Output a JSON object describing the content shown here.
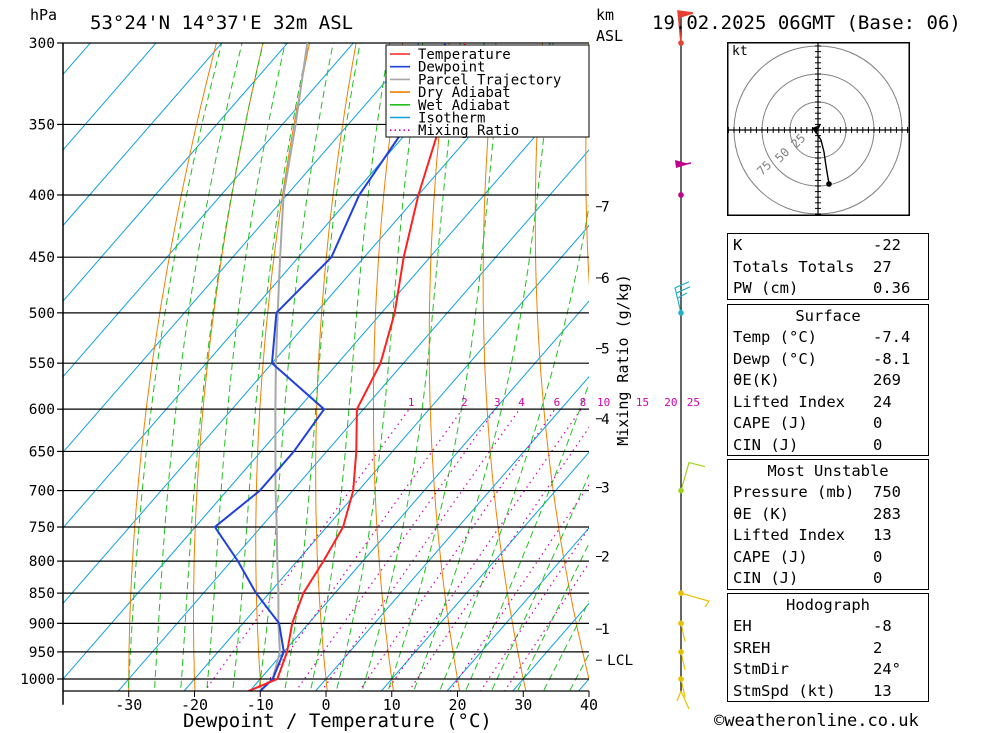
{
  "header": {
    "location": "53°24'N 14°37'E 32m ASL",
    "datetime": "19.02.2025 06GMT (Base: 06)",
    "pressure_unit": "hPa",
    "height_unit": "km",
    "height_unit2": "ASL",
    "footer_credit": "©weatheronline.co.uk"
  },
  "legend": [
    {
      "label": "Temperature",
      "color": "#ff2020",
      "style": "solid"
    },
    {
      "label": "Dewpoint",
      "color": "#1f3fdf",
      "style": "solid"
    },
    {
      "label": "Parcel Trajectory",
      "color": "#a8a8a8",
      "style": "solid"
    },
    {
      "label": "Dry Adiabat",
      "color": "#f08000",
      "style": "solid"
    },
    {
      "label": "Wet Adiabat",
      "color": "#20c020",
      "style": "solid"
    },
    {
      "label": "Isotherm",
      "color": "#10a0e0",
      "style": "solid"
    },
    {
      "label": "Mixing Ratio",
      "color": "#d000b0",
      "style": "dotted"
    }
  ],
  "hodograph": {
    "unit_label": "kt",
    "ring_labels": [
      "25",
      "50",
      "75"
    ]
  },
  "indices": {
    "k": {
      "label": "K",
      "value": "-22"
    },
    "totals": {
      "label": "Totals Totals",
      "value": "27"
    },
    "pw": {
      "label": "PW (cm)",
      "value": "0.36"
    }
  },
  "surface": {
    "title": "Surface",
    "rows": [
      {
        "label": "Temp (°C)",
        "value": "-7.4"
      },
      {
        "label": "Dewp (°C)",
        "value": "-8.1"
      },
      {
        "label": "θE(K)",
        "value": "269"
      },
      {
        "label": "Lifted Index",
        "value": "24"
      },
      {
        "label": "CAPE (J)",
        "value": "0"
      },
      {
        "label": "CIN (J)",
        "value": "0"
      }
    ]
  },
  "most_unstable": {
    "title": "Most Unstable",
    "rows": [
      {
        "label": "Pressure (mb)",
        "value": "750"
      },
      {
        "label": "θE (K)",
        "value": "283"
      },
      {
        "label": "Lifted Index",
        "value": "13"
      },
      {
        "label": "CAPE (J)",
        "value": "0"
      },
      {
        "label": "CIN (J)",
        "value": "0"
      }
    ]
  },
  "hodo_table": {
    "title": "Hodograph",
    "rows": [
      {
        "label": "EH",
        "value": "-8"
      },
      {
        "label": "SREH",
        "value": "2"
      },
      {
        "label": "StmDir",
        "value": "24°"
      },
      {
        "label": "StmSpd (kt)",
        "value": "13"
      }
    ]
  },
  "chart_data": {
    "type": "line",
    "title": "53°24'N 14°37'E 32m ASL",
    "xlabel": "Dewpoint / Temperature (°C)",
    "ylabel": "hPa",
    "y2label": "Mixing Ratio (g/kg)",
    "x_ticks": [
      -30,
      -20,
      -10,
      0,
      10,
      20,
      30,
      40
    ],
    "x_range": [
      -40,
      40
    ],
    "p_levels": [
      300,
      350,
      400,
      450,
      500,
      550,
      600,
      650,
      700,
      750,
      800,
      850,
      900,
      950,
      1000
    ],
    "p_range": [
      300,
      1050
    ],
    "y_scale": "log",
    "km_ticks": [
      {
        "p": 965,
        "label": "LCL"
      },
      {
        "p": 910,
        "label": "1"
      },
      {
        "p": 793,
        "label": "2"
      },
      {
        "p": 696,
        "label": "3"
      },
      {
        "p": 611,
        "label": "4"
      },
      {
        "p": 535,
        "label": "5"
      },
      {
        "p": 468,
        "label": "6"
      },
      {
        "p": 409,
        "label": "7"
      }
    ],
    "mixing_ratio_labels": [
      "1",
      "2",
      "3",
      "4",
      "6",
      "8",
      "10",
      "15",
      "20",
      "25"
    ],
    "series": [
      {
        "name": "Temperature",
        "color": "#ff2020",
        "points": [
          [
            1030,
            -11
          ],
          [
            1000,
            -7.4
          ],
          [
            950,
            -9.5
          ],
          [
            900,
            -12.5
          ],
          [
            850,
            -14.8
          ],
          [
            800,
            -16
          ],
          [
            750,
            -17.5
          ],
          [
            700,
            -20.8
          ],
          [
            650,
            -25.5
          ],
          [
            600,
            -31
          ],
          [
            550,
            -33.5
          ],
          [
            500,
            -38
          ],
          [
            450,
            -44
          ],
          [
            400,
            -50
          ],
          [
            350,
            -56
          ],
          [
            300,
            -63
          ]
        ]
      },
      {
        "name": "Dewpoint",
        "color": "#1f3fdf",
        "points": [
          [
            1030,
            -8.5
          ],
          [
            1000,
            -8.1
          ],
          [
            950,
            -10
          ],
          [
            900,
            -14.5
          ],
          [
            850,
            -22
          ],
          [
            800,
            -29
          ],
          [
            750,
            -37
          ],
          [
            700,
            -35
          ],
          [
            650,
            -35
          ],
          [
            600,
            -36
          ],
          [
            550,
            -50
          ],
          [
            500,
            -56
          ],
          [
            450,
            -55
          ],
          [
            400,
            -59
          ],
          [
            350,
            -61
          ],
          [
            300,
            -66
          ]
        ]
      },
      {
        "name": "Parcel Trajectory",
        "color": "#a8a8a8",
        "points": [
          [
            1030,
            -8.5
          ],
          [
            1000,
            -8.1
          ],
          [
            950,
            -10.6
          ],
          [
            900,
            -14.6
          ],
          [
            850,
            -18.6
          ],
          [
            800,
            -23
          ],
          [
            750,
            -27.6
          ],
          [
            700,
            -32.6
          ],
          [
            650,
            -37.8
          ],
          [
            600,
            -43.4
          ],
          [
            550,
            -49.4
          ],
          [
            500,
            -55.8
          ],
          [
            450,
            -62.8
          ],
          [
            400,
            -70.5
          ],
          [
            350,
            -78
          ],
          [
            300,
            -87
          ]
        ]
      }
    ],
    "wind_barbs": [
      {
        "p": 300,
        "color": "#e84030"
      },
      {
        "p": 400,
        "color": "#c0008c"
      },
      {
        "p": 500,
        "color": "#20b0c8"
      },
      {
        "p": 700,
        "color": "#a0d020"
      },
      {
        "p": 850,
        "color": "#e8c000"
      },
      {
        "p": 900,
        "color": "#e8c000"
      },
      {
        "p": 950,
        "color": "#e8c000"
      },
      {
        "p": 1000,
        "color": "#e8c000"
      }
    ],
    "grid": true
  }
}
